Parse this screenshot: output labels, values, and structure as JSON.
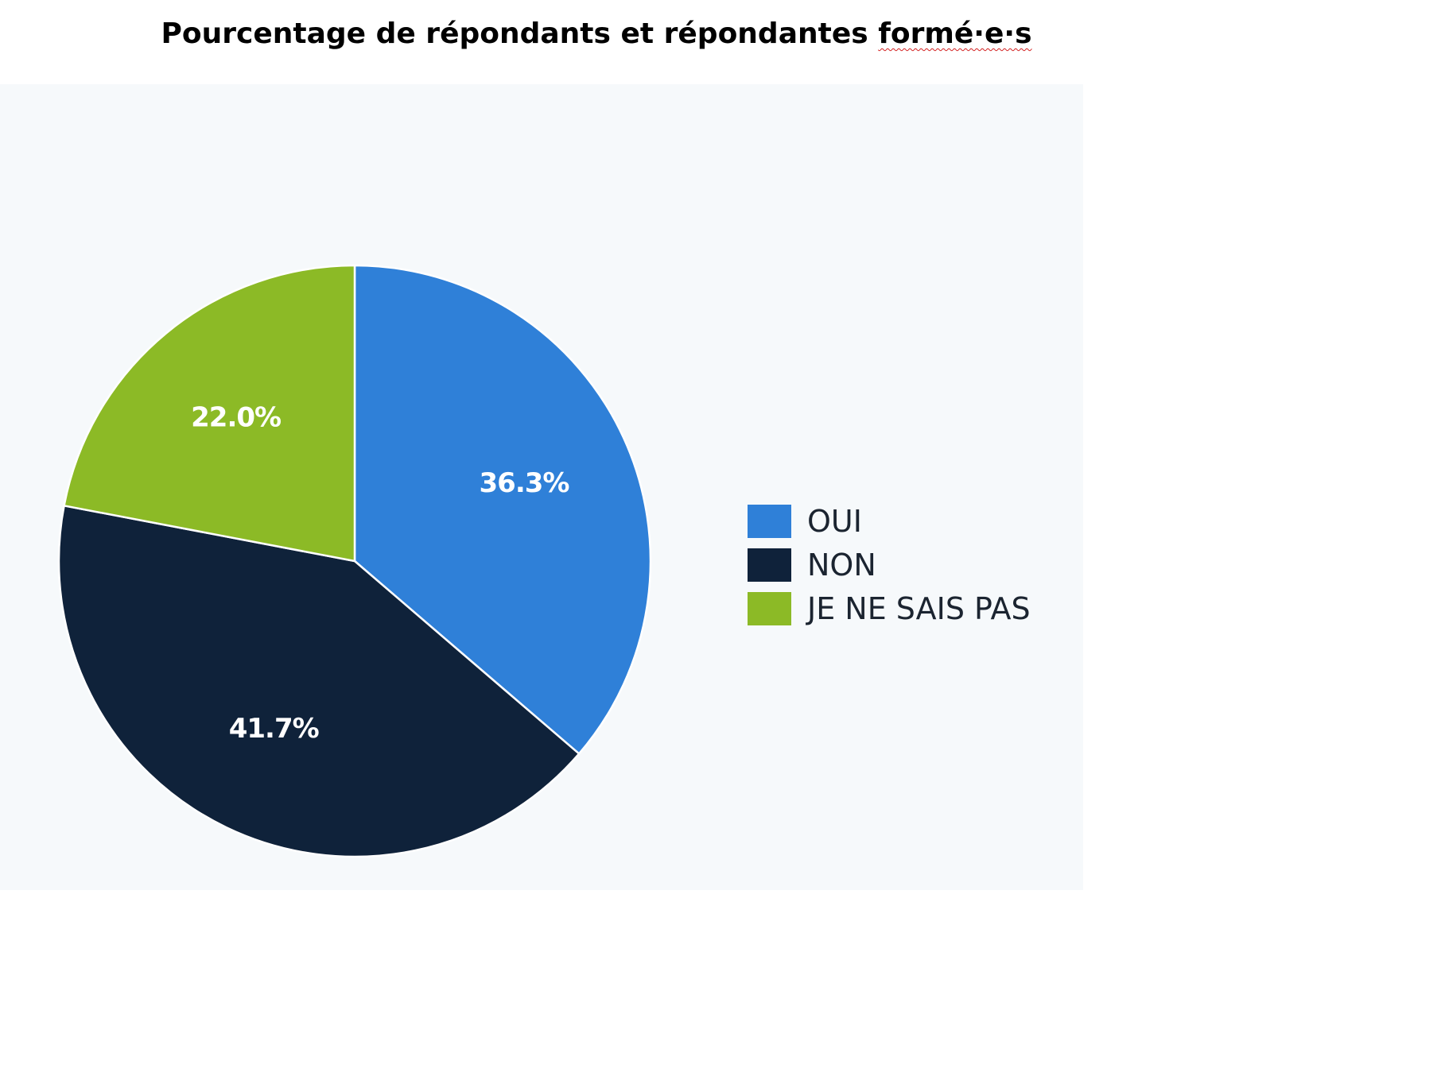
{
  "chart_data": {
    "type": "pie",
    "title_main": "Pourcentage de répondants et répondantes ",
    "title_tail": "formé·e·s",
    "categories": [
      "OUI",
      "NON",
      "JE NE SAIS PAS"
    ],
    "values": [
      36.3,
      41.7,
      22.0
    ],
    "value_labels": [
      "36.3%",
      "41.7%",
      "22.0%"
    ],
    "colors": [
      "#2f80d8",
      "#0f223a",
      "#8cba26"
    ],
    "legend_position": "right"
  }
}
